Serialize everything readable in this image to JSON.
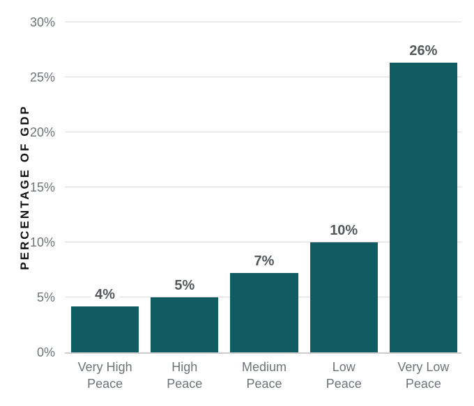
{
  "chart_data": {
    "type": "bar",
    "title": "",
    "xlabel": "",
    "ylabel": "PERCENTAGE OF GDP",
    "categories": [
      "Very High\nPeace",
      "High\nPeace",
      "Medium\nPeace",
      "Low\nPeace",
      "Very Low\nPeace"
    ],
    "values": [
      4.2,
      5,
      7.2,
      10,
      26.3
    ],
    "value_labels": [
      "4%",
      "5%",
      "7%",
      "10%",
      "26%"
    ],
    "ylim": [
      0,
      30
    ],
    "ytick_step": 5,
    "yticks": [
      "0%",
      "5%",
      "10%",
      "15%",
      "20%",
      "25%",
      "30%"
    ],
    "grid": "horizontal",
    "legend": "none"
  },
  "colors": {
    "bar": "#115C62",
    "gridline": "#DBDBDB",
    "axis_line": "#CDCDCD",
    "tick_label": "#6E737A",
    "value_label": "#54575C",
    "axis_title": "#121212",
    "background": "#FFFFFF"
  }
}
